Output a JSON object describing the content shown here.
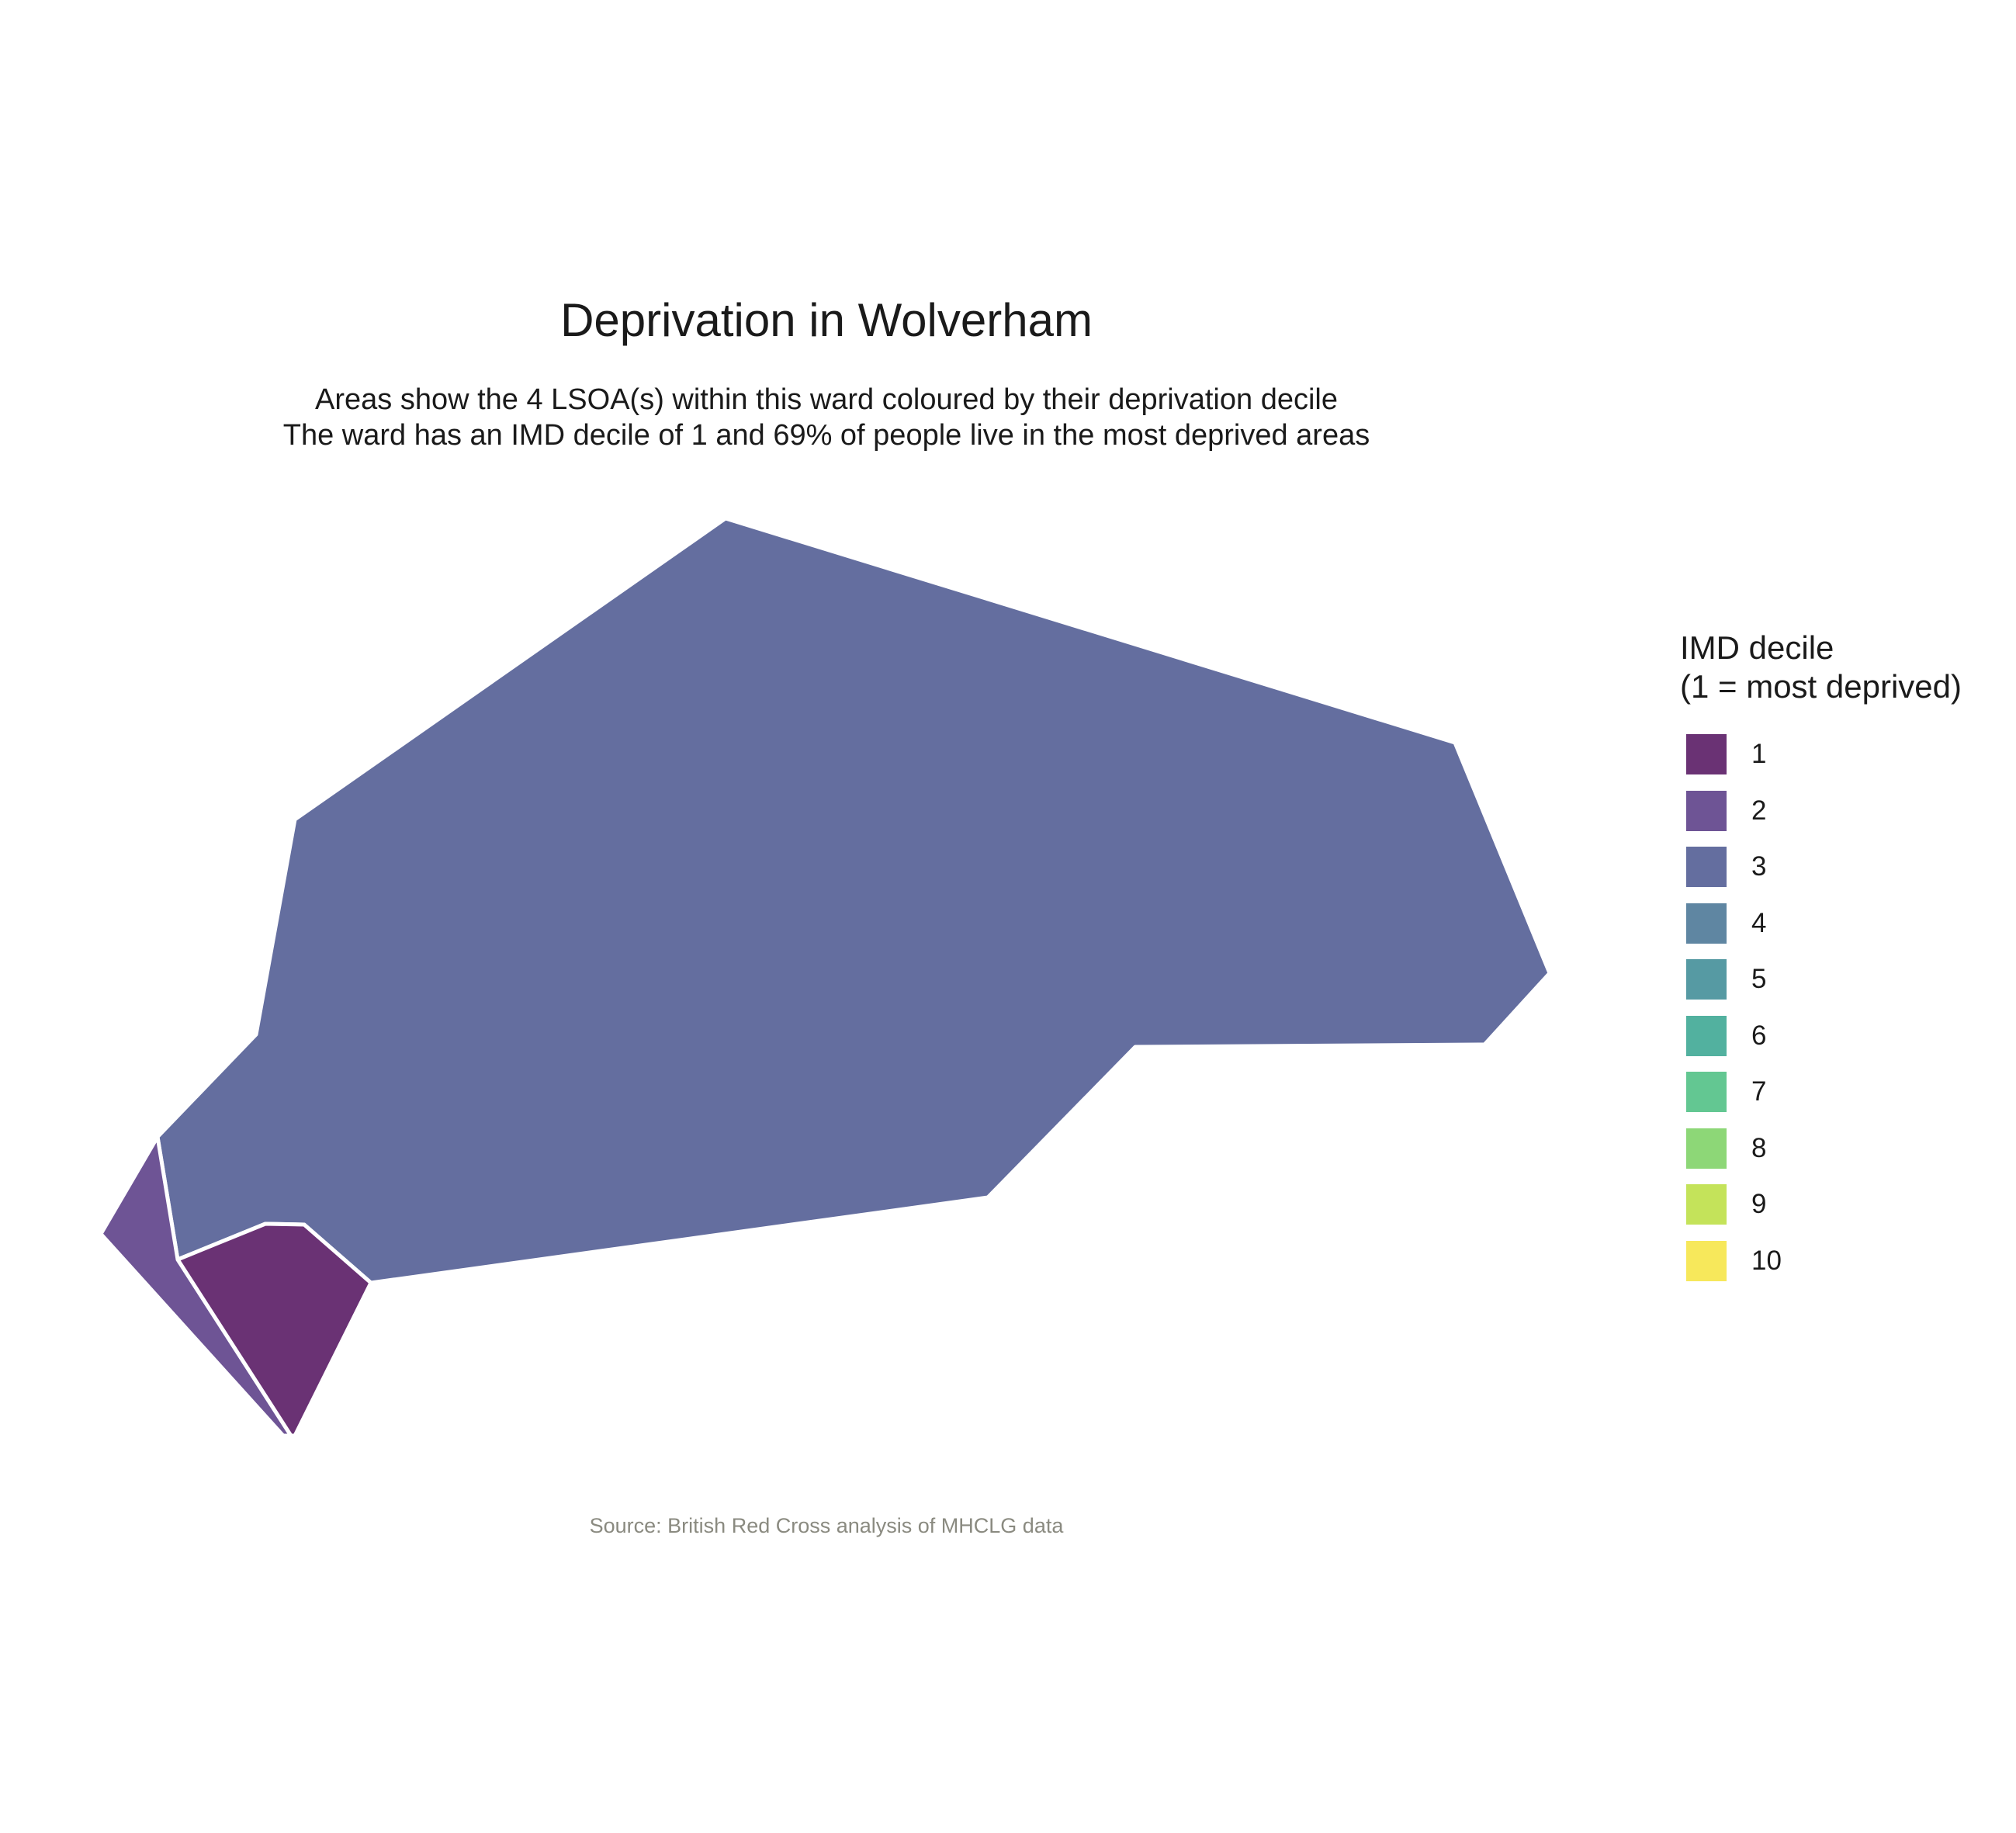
{
  "title": "Deprivation in Wolverham",
  "subtitle": {
    "line1": "Areas show the 4 LSOA(s) within this ward coloured by their deprivation decile",
    "line2": "The ward has an IMD decile of 1 and 69% of people live in the most deprived areas"
  },
  "caption": "Source: British Red Cross analysis of MHCLG data",
  "legend": {
    "title_line1": "IMD decile",
    "title_line2": "(1 = most deprived)",
    "items": [
      {
        "label": "1",
        "color": "#6a3274"
      },
      {
        "label": "2",
        "color": "#6e5495"
      },
      {
        "label": "3",
        "color": "#646e9f"
      },
      {
        "label": "4",
        "color": "#5f86a2"
      },
      {
        "label": "5",
        "color": "#569aa3"
      },
      {
        "label": "6",
        "color": "#52b19f"
      },
      {
        "label": "7",
        "color": "#63c792"
      },
      {
        "label": "8",
        "color": "#8dd777"
      },
      {
        "label": "9",
        "color": "#c4e35a"
      },
      {
        "label": "10",
        "color": "#f7e85b"
      }
    ]
  },
  "map": {
    "border_color": "#ffffff",
    "areas": [
      {
        "name": "lsoa-decile-3",
        "decile": 3,
        "color": "#646e9f"
      },
      {
        "name": "lsoa-decile-2",
        "decile": 2,
        "color": "#6e5495"
      },
      {
        "name": "lsoa-decile-1",
        "decile": 1,
        "color": "#6a3274"
      }
    ]
  }
}
